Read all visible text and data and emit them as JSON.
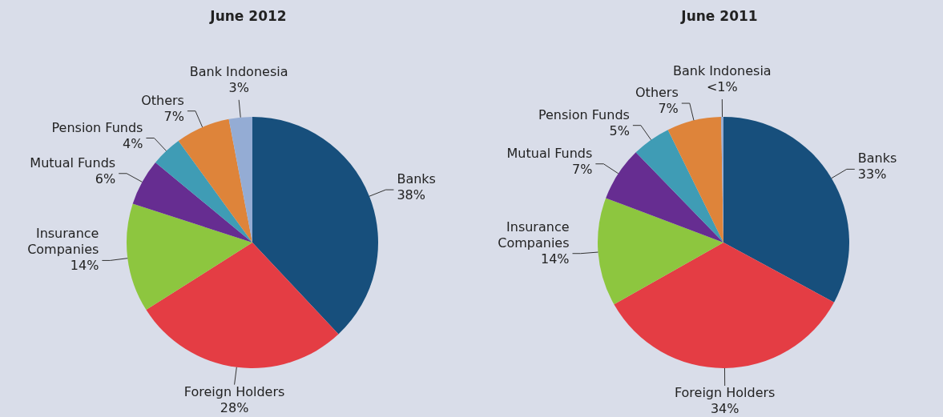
{
  "chart_data": [
    {
      "type": "pie",
      "title": "June 2012",
      "categories": [
        "Banks",
        "Foreign Holders",
        "Insurance Companies",
        "Mutual Funds",
        "Pension Funds",
        "Others",
        "Bank Indonesia"
      ],
      "values": [
        38,
        28,
        14,
        6,
        4,
        7,
        3
      ],
      "value_labels": [
        "38%",
        "28%",
        "14%",
        "6%",
        "4%",
        "7%",
        "3%"
      ],
      "colors": [
        "#174f7c",
        "#e43d44",
        "#8dc63f",
        "#662d91",
        "#3f9cb5",
        "#de843a",
        "#94acd4"
      ],
      "legend": false
    },
    {
      "type": "pie",
      "title": "June 2011",
      "categories": [
        "Banks",
        "Foreign Holders",
        "Insurance Companies",
        "Mutual Funds",
        "Pension Funds",
        "Others",
        "Bank Indonesia"
      ],
      "values": [
        33,
        34,
        14,
        7,
        5,
        7,
        0.3
      ],
      "value_labels": [
        "33%",
        "34%",
        "14%",
        "7%",
        "5%",
        "7%",
        "<1%"
      ],
      "colors": [
        "#174f7c",
        "#e43d44",
        "#8dc63f",
        "#662d91",
        "#3f9cb5",
        "#de843a",
        "#94acd4"
      ],
      "legend": false
    }
  ]
}
